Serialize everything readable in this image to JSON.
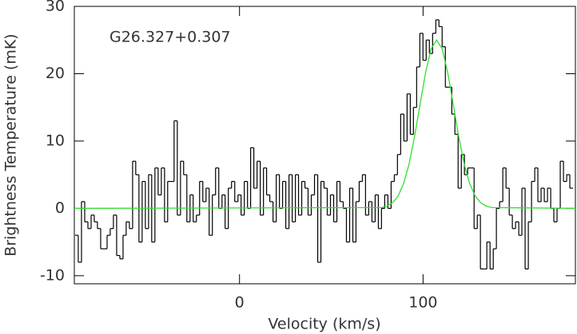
{
  "chart_data": {
    "type": "line",
    "annotation": "G26.327+0.307",
    "xlabel": "Velocity (km/s)",
    "ylabel": "Brightness Temperature (mK)",
    "xlim": [
      -90,
      183
    ],
    "ylim": [
      -11.2,
      30
    ],
    "xticks": [
      0,
      100
    ],
    "yticks": [
      -10,
      0,
      10,
      20,
      30
    ],
    "series": [
      {
        "color": "#000000",
        "step": true,
        "x": [
          -88.7,
          -87.0,
          -85.2,
          -83.5,
          -81.7,
          -80.0,
          -78.3,
          -76.5,
          -74.8,
          -73.0,
          -71.3,
          -69.6,
          -67.8,
          -66.1,
          -64.3,
          -62.6,
          -60.9,
          -59.1,
          -57.4,
          -55.7,
          -53.9,
          -52.2,
          -50.4,
          -48.7,
          -47.0,
          -45.2,
          -43.5,
          -41.7,
          -40.0,
          -38.3,
          -36.5,
          -34.8,
          -33.0,
          -31.3,
          -29.6,
          -27.8,
          -26.1,
          -24.4,
          -22.6,
          -20.9,
          -19.1,
          -17.4,
          -15.7,
          -13.9,
          -12.2,
          -10.4,
          -8.7,
          -7.0,
          -5.2,
          -3.5,
          -1.7,
          0.0,
          1.7,
          3.5,
          5.2,
          6.9,
          8.7,
          10.4,
          12.2,
          13.9,
          15.6,
          17.4,
          19.1,
          20.9,
          22.6,
          24.3,
          26.1,
          27.8,
          29.6,
          31.3,
          33.0,
          34.8,
          36.5,
          38.2,
          40.0,
          41.7,
          43.5,
          45.2,
          46.9,
          48.7,
          50.4,
          52.2,
          53.9,
          55.6,
          57.4,
          59.1,
          60.9,
          62.6,
          64.3,
          66.1,
          67.8,
          69.5,
          71.3,
          73.0,
          74.8,
          76.5,
          78.2,
          80.0,
          81.7,
          83.5,
          85.2,
          86.9,
          88.7,
          90.4,
          92.2,
          93.9,
          95.6,
          97.4,
          99.1,
          100.8,
          102.6,
          104.3,
          106.1,
          107.8,
          109.5,
          111.3,
          113.0,
          114.8,
          116.5,
          118.2,
          120.0,
          121.7,
          123.4,
          125.2,
          126.9,
          128.7,
          130.4,
          132.1,
          133.9,
          135.6,
          137.4,
          139.1,
          140.8,
          142.6,
          144.3,
          146.1,
          147.8,
          149.5,
          151.3,
          153.0,
          154.7,
          156.5,
          158.2,
          160.0,
          161.7,
          163.4,
          165.2,
          166.9,
          168.7,
          170.4,
          172.1,
          173.9,
          175.6,
          177.4,
          179.1,
          180.8
        ],
        "values": [
          -4,
          -8,
          1,
          -2,
          -3,
          -1,
          -2,
          -3,
          -6,
          -6,
          -4,
          -3,
          -1,
          -7,
          -7.5,
          -4,
          -2,
          -3,
          7,
          5,
          -5,
          4,
          -3,
          5,
          -5,
          6,
          2,
          6,
          -2,
          4,
          4,
          13,
          -1,
          7,
          5,
          -2,
          2,
          -2,
          -1,
          4,
          1,
          3,
          -4,
          2,
          6,
          0,
          2,
          -3,
          3,
          4,
          1,
          2,
          -1,
          4,
          0,
          9,
          3,
          7,
          -1,
          6,
          2,
          1,
          -2,
          5,
          0,
          4,
          -3,
          5,
          -2,
          5,
          -1,
          4,
          3,
          -1,
          2,
          5,
          -8,
          4,
          3,
          -1,
          2,
          -2,
          4,
          1,
          0,
          -5,
          3,
          -5,
          1,
          4,
          5,
          -1,
          1,
          -2,
          2,
          -3,
          0,
          2,
          0,
          4,
          5,
          8,
          14,
          10,
          17,
          11,
          15,
          21,
          26,
          22,
          25,
          23,
          26,
          28,
          27,
          24,
          18,
          18,
          14,
          11,
          3,
          8,
          5,
          6,
          6,
          -3,
          -1,
          -9,
          -9,
          -5,
          -9,
          -6,
          0,
          1,
          6,
          3,
          -1,
          -3,
          -2,
          -4,
          3,
          -9,
          -2,
          4,
          6,
          1,
          3,
          1,
          3,
          0,
          -2,
          0,
          7,
          4,
          5,
          3
        ]
      },
      {
        "color": "#33dd33",
        "step": false,
        "x": [
          -90,
          77.4,
          80.4,
          83.4,
          86.4,
          89.4,
          92.4,
          95.4,
          98.4,
          101.4,
          104.4,
          107.4,
          110.4,
          113.4,
          116.4,
          119.4,
          122.4,
          125.4,
          128.4,
          131.4,
          134.4,
          137.4,
          183
        ],
        "values": [
          0,
          0.12,
          0.34,
          0.83,
          1.84,
          3.68,
          6.6,
          10.7,
          15.5,
          20.2,
          23.7,
          25,
          23.7,
          20.2,
          15.5,
          10.7,
          6.6,
          3.68,
          1.84,
          0.83,
          0.34,
          0.12,
          0
        ]
      }
    ]
  }
}
